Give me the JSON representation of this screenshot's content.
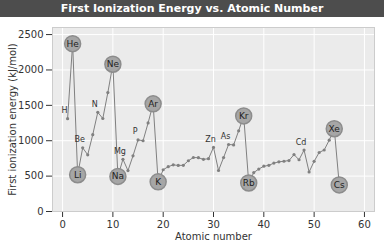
{
  "chart_data": {
    "type": "line",
    "title": "First Ionization Energy vs. Atomic Number",
    "x_label": "Atomic number",
    "y_label": "First ionization energy (kJ/mol)",
    "x": [
      1,
      2,
      3,
      4,
      5,
      6,
      7,
      8,
      9,
      10,
      11,
      12,
      13,
      14,
      15,
      16,
      17,
      18,
      19,
      20,
      21,
      22,
      23,
      24,
      25,
      26,
      27,
      28,
      29,
      30,
      31,
      32,
      33,
      34,
      35,
      36,
      37,
      38,
      39,
      40,
      41,
      42,
      43,
      44,
      45,
      46,
      47,
      48,
      49,
      50,
      51,
      52,
      53,
      54,
      55
    ],
    "values": [
      1312,
      2372,
      520,
      900,
      801,
      1086,
      1402,
      1314,
      1681,
      2081,
      496,
      738,
      578,
      787,
      1012,
      1000,
      1251,
      1521,
      419,
      590,
      633,
      659,
      651,
      653,
      717,
      763,
      760,
      737,
      746,
      906,
      579,
      762,
      947,
      941,
      1140,
      1351,
      403,
      550,
      600,
      640,
      652,
      684,
      702,
      710,
      720,
      804,
      731,
      868,
      558,
      709,
      834,
      869,
      1008,
      1170,
      376
    ],
    "color": "#808080",
    "marker": "circle",
    "xlim": [
      -2,
      62
    ],
    "xticks": [
      0,
      10,
      20,
      30,
      40,
      50,
      60
    ],
    "ylim": [
      0,
      2600
    ],
    "yticks": [
      0,
      500,
      1000,
      1500,
      2000,
      2500
    ],
    "grid": true,
    "annotations": [
      {
        "text": "H",
        "x": 1
      },
      {
        "text": "He",
        "x": 2,
        "marker": "circle"
      },
      {
        "text": "Li",
        "x": 3,
        "marker": "circle"
      },
      {
        "text": "Be",
        "x": 4
      },
      {
        "text": "N",
        "x": 7
      },
      {
        "text": "Ne",
        "x": 10,
        "marker": "circle"
      },
      {
        "text": "Na",
        "x": 11,
        "marker": "circle"
      },
      {
        "text": "Mg",
        "x": 12
      },
      {
        "text": "P",
        "x": 15
      },
      {
        "text": "Ar",
        "x": 18,
        "marker": "circle"
      },
      {
        "text": "K",
        "x": 19,
        "marker": "circle"
      },
      {
        "text": "Zn",
        "x": 30
      },
      {
        "text": "As",
        "x": 33
      },
      {
        "text": "Kr",
        "x": 36,
        "marker": "circle"
      },
      {
        "text": "Rb",
        "x": 37,
        "marker": "circle"
      },
      {
        "text": "Cd",
        "x": 48
      },
      {
        "text": "Xe",
        "x": 54,
        "marker": "circle"
      },
      {
        "text": "Cs",
        "x": 55,
        "marker": "circle"
      }
    ]
  }
}
